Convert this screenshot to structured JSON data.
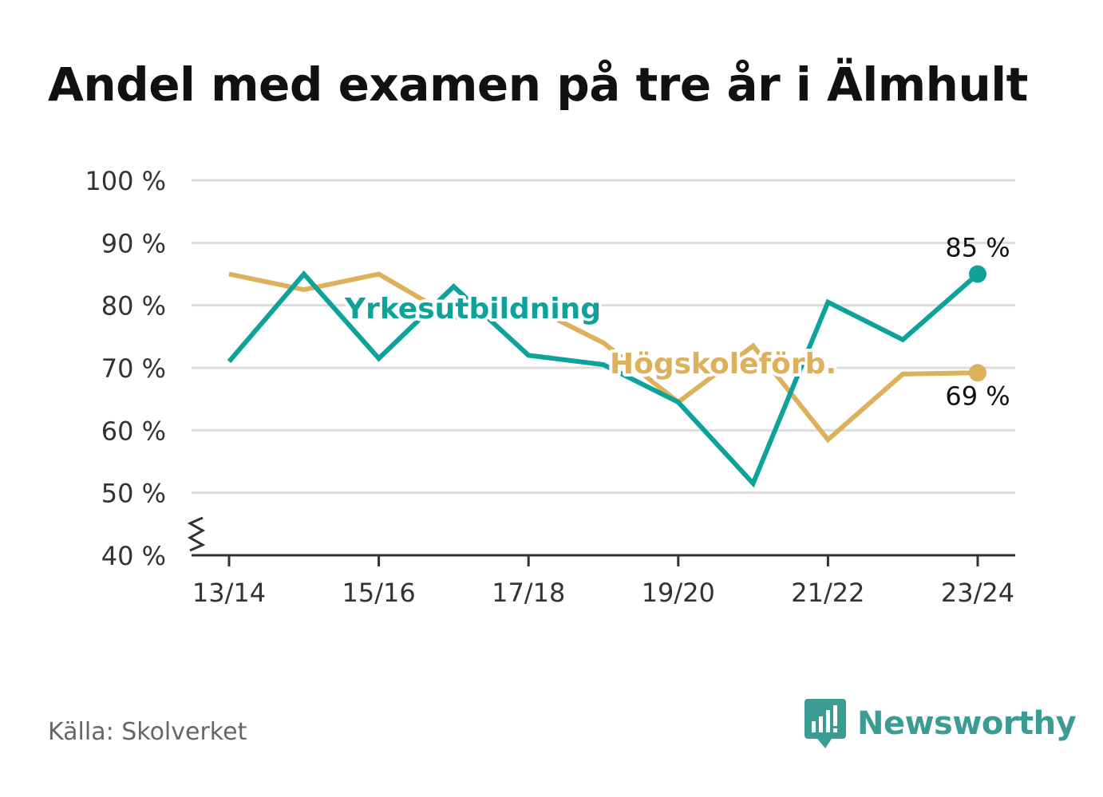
{
  "title": "Andel med examen på tre år i Älmhult",
  "source": "Källa: Skolverket",
  "brand": {
    "name": "Newsworthy",
    "icon": "newsworthy-logo-icon",
    "color": "#3a9c92"
  },
  "colors": {
    "yrkes": "#0ea39a",
    "hogskole": "#ddb15c",
    "grid": "#dddddd",
    "axis": "#333333"
  },
  "chart_data": {
    "type": "line",
    "title": "Andel med examen på tre år i Älmhult",
    "x": [
      "13/14",
      "14/15",
      "15/16",
      "16/17",
      "17/18",
      "18/19",
      "19/20",
      "20/21",
      "21/22",
      "22/23",
      "23/24"
    ],
    "x_tick_labels": [
      "13/14",
      "15/16",
      "17/18",
      "19/20",
      "21/22",
      "23/24"
    ],
    "y_ticks": [
      "40 %",
      "50 %",
      "60 %",
      "70 %",
      "80 %",
      "90 %",
      "100 %"
    ],
    "ylim": [
      40,
      100
    ],
    "y_axis_break": true,
    "grid": true,
    "series": [
      {
        "name": "Yrkesutbildning",
        "color": "#0ea39a",
        "values": [
          71,
          85,
          71.5,
          83,
          72,
          70.5,
          64.5,
          51.5,
          80.5,
          74.5,
          85
        ],
        "end_label": "85 %"
      },
      {
        "name": "Högskoleförb.",
        "color": "#ddb15c",
        "values": [
          85,
          82.5,
          85,
          78,
          80,
          74,
          64.5,
          73.5,
          58.5,
          69,
          69.2
        ],
        "end_label": "69 %"
      }
    ]
  }
}
